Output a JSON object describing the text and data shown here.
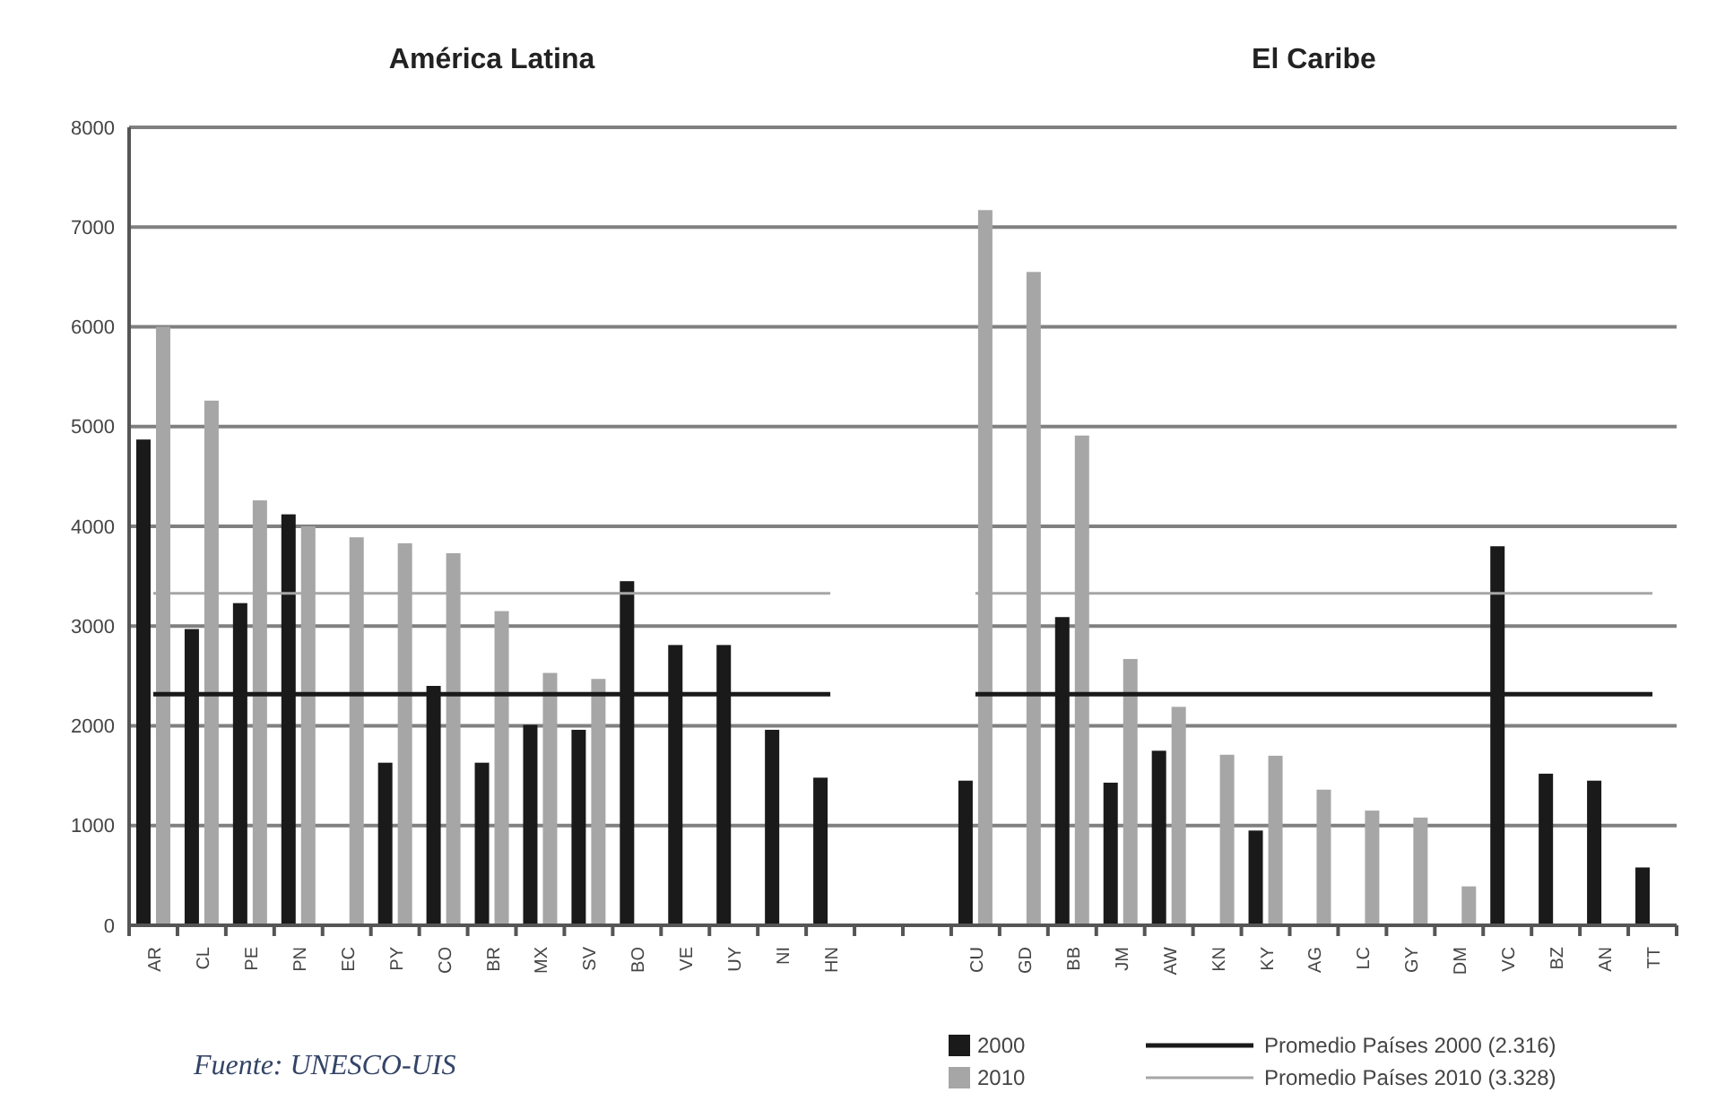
{
  "chart_data": {
    "type": "bar",
    "categories": [
      "AR",
      "CL",
      "PE",
      "PN",
      "EC",
      "PY",
      "CO",
      "BR",
      "MX",
      "SV",
      "BO",
      "VE",
      "UY",
      "NI",
      "HN",
      null,
      null,
      "CU",
      "GD",
      "BB",
      "JM",
      "AW",
      "KN",
      "KY",
      "AG",
      "LC",
      "GY",
      "DM",
      "VC",
      "BZ",
      "AN",
      "TT"
    ],
    "series": [
      {
        "name": "2000",
        "color": "#1a1a1a",
        "values": [
          4870,
          2970,
          3230,
          4120,
          null,
          1630,
          2400,
          1630,
          2010,
          1960,
          3450,
          2810,
          2810,
          1960,
          1480,
          null,
          null,
          1450,
          null,
          3090,
          1430,
          1750,
          null,
          950,
          null,
          null,
          null,
          null,
          3800,
          1520,
          1450,
          580
        ]
      },
      {
        "name": "2010",
        "color": "#a6a6a6",
        "values": [
          6000,
          5260,
          4260,
          4000,
          3890,
          3830,
          3730,
          3150,
          2530,
          2470,
          null,
          null,
          null,
          null,
          null,
          null,
          null,
          7170,
          6550,
          4910,
          2670,
          2190,
          1710,
          1700,
          1360,
          1150,
          1080,
          390,
          null,
          null,
          null,
          null
        ]
      },
      {
        "name": "Promedio Países 2000 (2.316)",
        "type": "line",
        "color": "#1a1a1a",
        "values": [
          2316,
          2316,
          2316,
          2316,
          2316,
          2316,
          2316,
          2316,
          2316,
          2316,
          2316,
          2316,
          2316,
          2316,
          2316,
          null,
          null,
          2316,
          2316,
          2316,
          2316,
          2316,
          2316,
          2316,
          2316,
          2316,
          2316,
          2316,
          2316,
          2316,
          2316,
          2316
        ]
      },
      {
        "name": "Promedio Países 2010 (3.328)",
        "type": "line",
        "color": "#a6a6a6",
        "values": [
          3328,
          3328,
          3328,
          3328,
          3328,
          3328,
          3328,
          3328,
          3328,
          3328,
          3328,
          3328,
          3328,
          3328,
          3328,
          null,
          null,
          3328,
          3328,
          3328,
          3328,
          3328,
          3328,
          3328,
          3328,
          3328,
          3328,
          3328,
          3328,
          3328,
          3328,
          3328
        ]
      }
    ],
    "ylim": [
      0,
      8000
    ],
    "yticks": [
      0,
      1000,
      2000,
      3000,
      4000,
      5000,
      6000,
      7000,
      8000
    ],
    "grid": "y",
    "legend": "bottom right",
    "annotations": [
      "América Latina",
      "El Caribe",
      "Fuente: UNESCO-UIS"
    ]
  }
}
